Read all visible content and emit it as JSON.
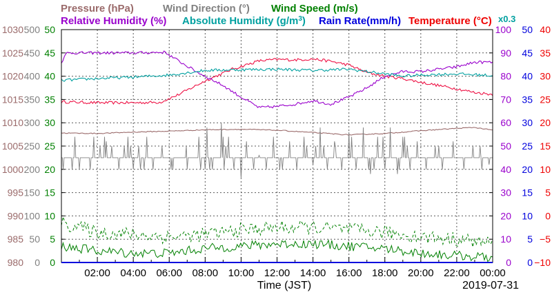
{
  "chart_data": {
    "type": "line",
    "date": "2019-07-31",
    "xlabel": "Time (JST)",
    "x_ticks": [
      "02:00",
      "04:00",
      "06:00",
      "08:00",
      "10:00",
      "12:00",
      "14:00",
      "16:00",
      "18:00",
      "20:00",
      "22:00",
      "00:00"
    ],
    "x_range_hours": [
      0,
      24
    ],
    "legend_row1": [
      {
        "text": "Pressure (hPa)",
        "color": "#9a6a6a"
      },
      {
        "text": "Wind Direction (°)",
        "color": "#808080"
      },
      {
        "text": "Wind Speed (m/s)",
        "color": "#008000"
      }
    ],
    "legend_row2": [
      {
        "text": "Relative Humidity (%)",
        "color": "#9900cc"
      },
      {
        "text": "Absolute Humidity (g/m",
        "sup": "3",
        "suffix": ")",
        "color": "#00a0a0"
      },
      {
        "text": "Rain Rate(mm/h)",
        "color": "#0000dd"
      },
      {
        "text": "Temperature (°C)",
        "color": "#ee0000"
      }
    ],
    "abs_humidity_scale_label": "x0.3",
    "axes": {
      "pressure": {
        "label_color": "#9a6a6a",
        "ticks": [
          "980",
          "985",
          "990",
          "995",
          "1000",
          "1005",
          "1010",
          "1015",
          "1020",
          "1025",
          "1030"
        ],
        "range": [
          980,
          1030
        ]
      },
      "wind_direction": {
        "label_color": "#808080",
        "ticks": [
          "0",
          "50",
          "100",
          "150",
          "200",
          "250",
          "300",
          "350",
          "400",
          "450",
          "500"
        ],
        "range": [
          0,
          500
        ]
      },
      "wind_speed": {
        "label_color": "#008000",
        "ticks": [
          "0",
          "5",
          "10",
          "15",
          "20",
          "25",
          "30",
          "35",
          "40",
          "45",
          "50"
        ],
        "range": [
          0,
          50
        ]
      },
      "relative_humidity": {
        "label_color": "#9900cc",
        "ticks": [
          "0",
          "10",
          "20",
          "30",
          "40",
          "50",
          "60",
          "70",
          "80",
          "90",
          "100"
        ],
        "range": [
          0,
          100
        ]
      },
      "rain_rate": {
        "label_color": "#0000dd",
        "ticks": [
          "0",
          "5",
          "10",
          "15",
          "20",
          "25",
          "30",
          "35",
          "40",
          "45",
          "50"
        ],
        "range": [
          0,
          50
        ]
      },
      "temperature": {
        "label_color": "#ee0000",
        "ticks": [
          "−10",
          "−5",
          "0",
          "5",
          "10",
          "15",
          "20",
          "25",
          "30",
          "35",
          "40"
        ],
        "range": [
          -10,
          40
        ]
      }
    },
    "series": [
      {
        "key": "temperature",
        "color": "#ee1144",
        "scale": [
          -10,
          40
        ],
        "points": [
          [
            0,
            24.5
          ],
          [
            2,
            24.3
          ],
          [
            4,
            24.3
          ],
          [
            5.5,
            24.4
          ],
          [
            6.5,
            26
          ],
          [
            8,
            29
          ],
          [
            9.5,
            31.5
          ],
          [
            11,
            33.3
          ],
          [
            12,
            33.6
          ],
          [
            13,
            33.5
          ],
          [
            14,
            33.7
          ],
          [
            15,
            33.2
          ],
          [
            16,
            32.4
          ],
          [
            17,
            30.8
          ],
          [
            18,
            30
          ],
          [
            19,
            29.5
          ],
          [
            20,
            28.7
          ],
          [
            21,
            28
          ],
          [
            22,
            27.3
          ],
          [
            23,
            26.5
          ],
          [
            24,
            26.1
          ]
        ]
      },
      {
        "key": "relative_humidity",
        "color": "#9900cc",
        "scale": [
          0,
          100
        ],
        "points": [
          [
            0,
            86
          ],
          [
            0.3,
            90
          ],
          [
            2,
            90
          ],
          [
            4,
            90
          ],
          [
            5.8,
            90.3
          ],
          [
            6,
            89
          ],
          [
            7.5,
            82
          ],
          [
            9,
            76
          ],
          [
            10,
            71
          ],
          [
            11,
            66.5
          ],
          [
            12,
            67
          ],
          [
            13,
            68
          ],
          [
            14,
            69.5
          ],
          [
            15,
            68
          ],
          [
            16,
            71
          ],
          [
            17,
            75
          ],
          [
            18,
            80
          ],
          [
            19,
            82
          ],
          [
            20,
            82
          ],
          [
            21,
            83
          ],
          [
            22,
            84
          ],
          [
            23,
            86
          ],
          [
            24,
            86
          ]
        ]
      },
      {
        "key": "absolute_humidity_x0.3",
        "color": "#00a0a0",
        "scale": [
          0,
          100
        ],
        "points": [
          [
            0,
            78.2
          ],
          [
            2,
            79
          ],
          [
            4,
            79.6
          ],
          [
            6,
            80.5
          ],
          [
            8,
            82.5
          ],
          [
            10,
            82.8
          ],
          [
            12,
            83
          ],
          [
            14,
            82.5
          ],
          [
            16,
            83
          ],
          [
            18,
            81
          ],
          [
            19,
            80
          ],
          [
            20,
            80.5
          ],
          [
            22,
            81
          ],
          [
            24,
            80.3
          ]
        ]
      },
      {
        "key": "pressure",
        "color": "#9a6a6a",
        "scale": [
          980,
          1030
        ],
        "points": [
          [
            0,
            1007.8
          ],
          [
            2,
            1007.7
          ],
          [
            4,
            1008
          ],
          [
            6,
            1008.2
          ],
          [
            8,
            1008.5
          ],
          [
            10,
            1008.6
          ],
          [
            12,
            1008.4
          ],
          [
            14,
            1007.9
          ],
          [
            16,
            1007.4
          ],
          [
            18,
            1007.7
          ],
          [
            20,
            1008.3
          ],
          [
            22,
            1008.8
          ],
          [
            23,
            1009
          ],
          [
            24,
            1008.4
          ]
        ]
      },
      {
        "key": "wind_direction",
        "color": "#808080",
        "scale": [
          0,
          500
        ],
        "base": 225,
        "levels": [
          200,
          225,
          250,
          270
        ],
        "events": [
          [
            0.1,
            200
          ],
          [
            0.6,
            200
          ],
          [
            1.0,
            200
          ],
          [
            1.6,
            200
          ],
          [
            2.5,
            260
          ],
          [
            2.8,
            250
          ],
          [
            3.2,
            200
          ],
          [
            3.5,
            250
          ],
          [
            4.0,
            200
          ],
          [
            4.3,
            250
          ],
          [
            4.6,
            200
          ],
          [
            5.1,
            200
          ],
          [
            5.6,
            250
          ],
          [
            6.2,
            200
          ],
          [
            7.0,
            200
          ],
          [
            7.6,
            225
          ],
          [
            8.1,
            290
          ],
          [
            8.4,
            200
          ],
          [
            8.9,
            300
          ],
          [
            9.3,
            270
          ],
          [
            9.6,
            200
          ],
          [
            10.0,
            180
          ],
          [
            10.3,
            260
          ],
          [
            10.7,
            200
          ],
          [
            11.0,
            230
          ],
          [
            11.4,
            200
          ],
          [
            11.8,
            270
          ],
          [
            12.3,
            200
          ],
          [
            12.7,
            260
          ],
          [
            13.1,
            200
          ],
          [
            13.5,
            270
          ],
          [
            14.0,
            210
          ],
          [
            14.4,
            290
          ],
          [
            14.8,
            200
          ],
          [
            15.2,
            260
          ],
          [
            15.6,
            200
          ],
          [
            16.0,
            280
          ],
          [
            16.4,
            200
          ],
          [
            16.8,
            290
          ],
          [
            17.2,
            190
          ],
          [
            17.6,
            270
          ],
          [
            18.0,
            200
          ],
          [
            18.3,
            290
          ],
          [
            18.7,
            190
          ],
          [
            19.0,
            270
          ],
          [
            19.4,
            200
          ],
          [
            19.8,
            260
          ],
          [
            20.3,
            200
          ],
          [
            20.8,
            250
          ],
          [
            21.2,
            200
          ],
          [
            21.8,
            260
          ],
          [
            22.4,
            200
          ],
          [
            22.9,
            250
          ],
          [
            23.4,
            200
          ],
          [
            23.8,
            210
          ]
        ]
      },
      {
        "key": "wind_speed_max",
        "color": "#008000",
        "dashed": true,
        "scale": [
          0,
          50
        ],
        "band": [
          [
            0,
            8.5
          ],
          [
            2,
            6.5
          ],
          [
            4,
            6
          ],
          [
            6,
            5.5
          ],
          [
            8,
            6
          ],
          [
            10,
            7
          ],
          [
            12,
            7.5
          ],
          [
            14,
            7.5
          ],
          [
            16,
            7
          ],
          [
            18,
            6.5
          ],
          [
            20,
            5.5
          ],
          [
            22,
            5
          ],
          [
            24,
            4
          ]
        ],
        "amp": 1.5
      },
      {
        "key": "wind_speed_avg",
        "color": "#008000",
        "dashed": false,
        "scale": [
          0,
          50
        ],
        "band": [
          [
            0,
            3.5
          ],
          [
            2,
            2.5
          ],
          [
            4,
            2
          ],
          [
            6,
            2
          ],
          [
            8,
            3
          ],
          [
            10,
            3.5
          ],
          [
            12,
            4
          ],
          [
            14,
            4
          ],
          [
            16,
            3.5
          ],
          [
            18,
            3
          ],
          [
            20,
            2
          ],
          [
            22,
            1.5
          ],
          [
            24,
            1
          ]
        ],
        "amp": 1.0
      }
    ],
    "grid": true
  }
}
